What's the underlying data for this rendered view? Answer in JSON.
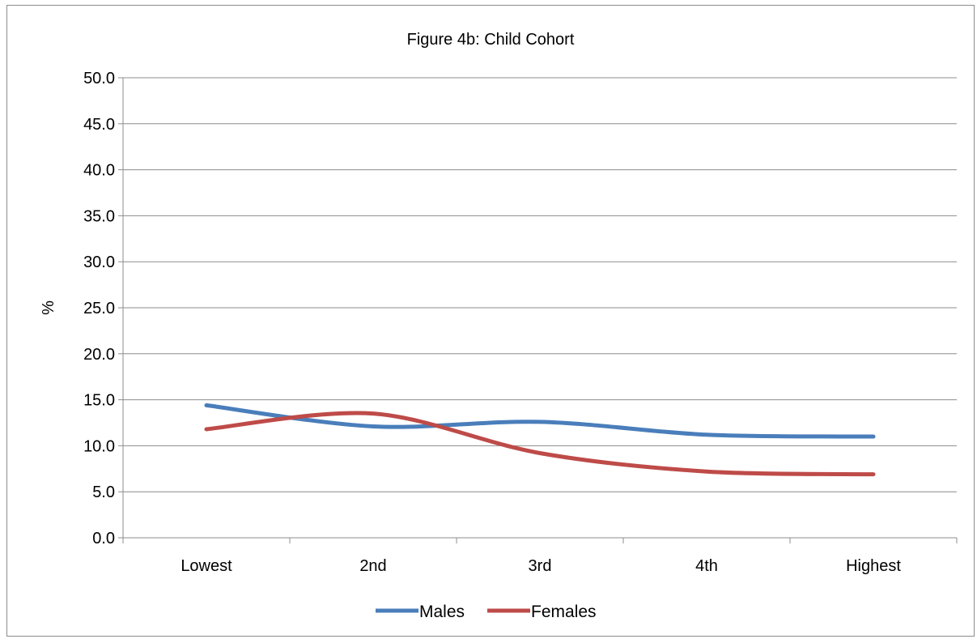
{
  "chart_data": {
    "type": "line",
    "title": "Figure 4b: Child Cohort",
    "xlabel": "",
    "ylabel": "%",
    "categories": [
      "Lowest",
      "2nd",
      "3rd",
      "4th",
      "Highest"
    ],
    "ylim": [
      0,
      50
    ],
    "yticks": [
      "0.0",
      "5.0",
      "10.0",
      "15.0",
      "20.0",
      "25.0",
      "30.0",
      "35.0",
      "40.0",
      "45.0",
      "50.0"
    ],
    "grid": true,
    "legend_position": "bottom",
    "series": [
      {
        "name": "Males",
        "color": "#4a7ebb",
        "values": [
          14.4,
          12.1,
          12.6,
          11.2,
          11.0
        ]
      },
      {
        "name": "Females",
        "color": "#be4b48",
        "values": [
          11.8,
          13.5,
          9.2,
          7.2,
          6.9
        ]
      }
    ]
  }
}
